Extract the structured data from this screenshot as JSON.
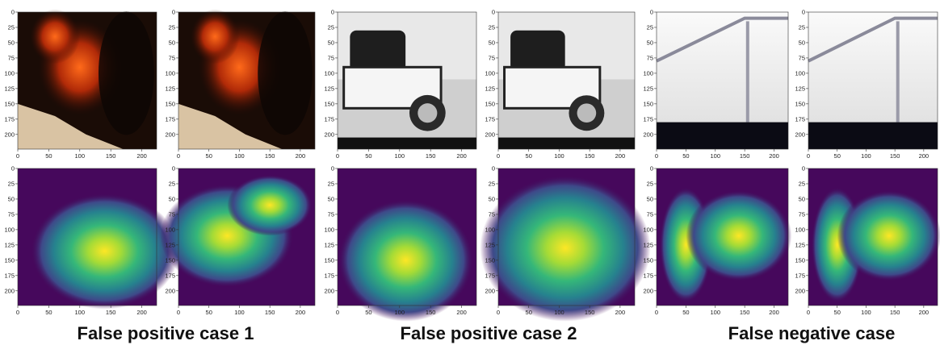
{
  "axes": {
    "xlim": [
      0,
      224
    ],
    "ylim": [
      0,
      224
    ],
    "xticks": [
      0,
      50,
      100,
      150,
      200
    ],
    "yticks": [
      0,
      25,
      50,
      75,
      100,
      125,
      150,
      175,
      200
    ]
  },
  "captions": [
    "False positive case 1",
    "False positive case 2",
    "False negative case"
  ]
}
